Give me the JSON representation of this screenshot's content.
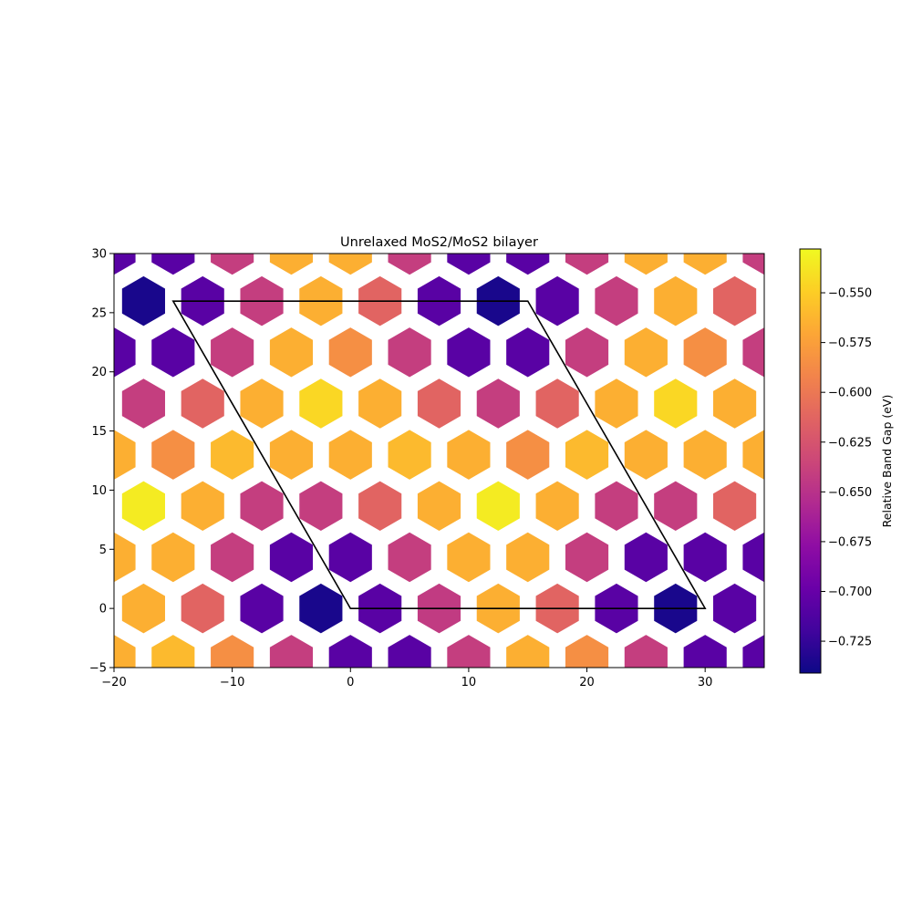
{
  "chart_data": {
    "type": "heatmap",
    "title": "Unrelaxed MoS2/MoS2 bilayer",
    "xlabel": "",
    "ylabel": "",
    "xlim": [
      -20,
      35
    ],
    "ylim": [
      -5,
      30
    ],
    "x_ticks": [
      "−20",
      "−10",
      "0",
      "10",
      "20",
      "30"
    ],
    "y_ticks": [
      "−5",
      "0",
      "5",
      "10",
      "15",
      "20",
      "25",
      "30"
    ],
    "x_tick_values": [
      -20,
      -10,
      0,
      10,
      20,
      30
    ],
    "y_tick_values": [
      -5,
      0,
      5,
      10,
      15,
      20,
      25,
      30
    ],
    "grid": false,
    "colormap": "plasma",
    "colorbar": {
      "label": "Relative Band Gap (eV)",
      "range": [
        -0.741,
        -0.528
      ],
      "ticks": [
        "−0.725",
        "−0.700",
        "−0.675",
        "−0.650",
        "−0.625",
        "−0.600",
        "−0.575",
        "−0.550"
      ],
      "tick_values": [
        -0.725,
        -0.7,
        -0.675,
        -0.65,
        -0.625,
        -0.6,
        -0.575,
        -0.55
      ]
    },
    "lattice": {
      "cell_width": 5,
      "row_height": 4.33,
      "row_offset_x": 2.5,
      "first_row_y": -4.33,
      "columns_start_x": -22.5,
      "hexagon_radius": 2.1
    },
    "rows": [
      {
        "y": -4.33,
        "x_start": -20,
        "values": [
          -0.566,
          -0.56,
          -0.585,
          -0.641,
          -0.707,
          -0.707,
          -0.641,
          -0.566,
          -0.585,
          -0.641,
          -0.707,
          -0.707
        ]
      },
      {
        "y": 0.0,
        "x_start": -22.5,
        "values": [
          -0.643,
          -0.566,
          -0.613,
          -0.707,
          -0.736,
          -0.707,
          -0.643,
          -0.566,
          -0.613,
          -0.707,
          -0.736,
          -0.707
        ]
      },
      {
        "y": 4.33,
        "x_start": -20,
        "values": [
          -0.566,
          -0.566,
          -0.641,
          -0.707,
          -0.707,
          -0.641,
          -0.566,
          -0.566,
          -0.641,
          -0.707,
          -0.707,
          -0.707
        ]
      },
      {
        "y": 8.66,
        "x_start": -22.5,
        "values": [
          -0.566,
          -0.535,
          -0.566,
          -0.641,
          -0.641,
          -0.613,
          -0.566,
          -0.535,
          -0.566,
          -0.641,
          -0.641,
          -0.613
        ]
      },
      {
        "y": 12.99,
        "x_start": -20,
        "values": [
          -0.566,
          -0.585,
          -0.56,
          -0.566,
          -0.566,
          -0.56,
          -0.566,
          -0.585,
          -0.56,
          -0.566,
          -0.566,
          -0.566
        ]
      },
      {
        "y": 17.32,
        "x_start": -22.5,
        "values": [
          -0.613,
          -0.641,
          -0.613,
          -0.566,
          -0.545,
          -0.566,
          -0.613,
          -0.641,
          -0.613,
          -0.566,
          -0.545,
          -0.566
        ]
      },
      {
        "y": 21.65,
        "x_start": -20,
        "values": [
          -0.707,
          -0.707,
          -0.641,
          -0.566,
          -0.585,
          -0.641,
          -0.707,
          -0.707,
          -0.641,
          -0.566,
          -0.585,
          -0.641
        ]
      },
      {
        "y": 25.98,
        "x_start": -22.5,
        "values": [
          -0.707,
          -0.736,
          -0.707,
          -0.641,
          -0.566,
          -0.613,
          -0.707,
          -0.736,
          -0.707,
          -0.641,
          -0.566,
          -0.613
        ]
      },
      {
        "y": 30.31,
        "x_start": -20,
        "values": [
          -0.707,
          -0.707,
          -0.641,
          -0.566,
          -0.566,
          -0.641,
          -0.707,
          -0.707,
          -0.641,
          -0.566,
          -0.566,
          -0.641
        ]
      }
    ],
    "moire_cell": {
      "color": "#000000",
      "vertices": [
        [
          0,
          0
        ],
        [
          30,
          0
        ],
        [
          15,
          25.98
        ],
        [
          -15,
          25.98
        ]
      ]
    }
  }
}
